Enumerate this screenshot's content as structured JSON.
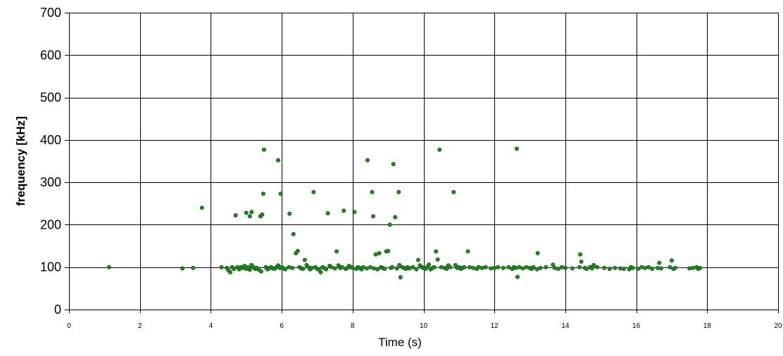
{
  "chart_data": {
    "type": "scatter",
    "title": "",
    "xlabel": "Time (s)",
    "ylabel": "frequency [kHz]",
    "xlim": [
      0,
      20
    ],
    "ylim": [
      0,
      700
    ],
    "xticks": [
      0,
      2,
      4,
      6,
      8,
      10,
      12,
      14,
      16,
      18,
      20
    ],
    "yticks": [
      0,
      100,
      200,
      300,
      400,
      500,
      600,
      700
    ],
    "grid": true,
    "legend": "none",
    "marker_color": "#1e8c1e",
    "marker_edge_color": "#0f5a0f",
    "series": [
      {
        "points": [
          [
            1.13,
            100
          ],
          [
            3.2,
            97
          ],
          [
            3.5,
            98
          ],
          [
            3.75,
            240
          ],
          [
            4.3,
            100
          ],
          [
            4.45,
            98
          ],
          [
            4.5,
            92
          ],
          [
            4.55,
            88
          ],
          [
            4.6,
            100
          ],
          [
            4.65,
            96
          ],
          [
            4.7,
            222
          ],
          [
            4.75,
            100
          ],
          [
            4.8,
            95
          ],
          [
            4.85,
            100
          ],
          [
            4.9,
            98
          ],
          [
            4.95,
            103
          ],
          [
            5.0,
            228
          ],
          [
            5.0,
            96
          ],
          [
            5.05,
            100
          ],
          [
            5.1,
            220
          ],
          [
            5.1,
            94
          ],
          [
            5.15,
            230
          ],
          [
            5.15,
            105
          ],
          [
            5.2,
            100
          ],
          [
            5.25,
            96
          ],
          [
            5.3,
            98
          ],
          [
            5.35,
            94
          ],
          [
            5.4,
            220
          ],
          [
            5.42,
            90
          ],
          [
            5.45,
            224
          ],
          [
            5.48,
            273
          ],
          [
            5.5,
            377
          ],
          [
            5.55,
            100
          ],
          [
            5.6,
            95
          ],
          [
            5.65,
            98
          ],
          [
            5.7,
            100
          ],
          [
            5.75,
            97
          ],
          [
            5.8,
            96
          ],
          [
            5.85,
            100
          ],
          [
            5.9,
            104
          ],
          [
            5.9,
            352
          ],
          [
            5.95,
            98
          ],
          [
            5.97,
            273
          ],
          [
            6.0,
            100
          ],
          [
            6.05,
            97
          ],
          [
            6.1,
            95
          ],
          [
            6.2,
            100
          ],
          [
            6.22,
            226
          ],
          [
            6.3,
            98
          ],
          [
            6.33,
            178
          ],
          [
            6.4,
            133
          ],
          [
            6.45,
            138
          ],
          [
            6.5,
            100
          ],
          [
            6.55,
            97
          ],
          [
            6.6,
            96
          ],
          [
            6.65,
            117
          ],
          [
            6.7,
            105
          ],
          [
            6.75,
            100
          ],
          [
            6.8,
            95
          ],
          [
            6.85,
            98
          ],
          [
            6.9,
            277
          ],
          [
            6.95,
            100
          ],
          [
            7.0,
            96
          ],
          [
            7.05,
            94
          ],
          [
            7.1,
            88
          ],
          [
            7.15,
            100
          ],
          [
            7.2,
            98
          ],
          [
            7.25,
            95
          ],
          [
            7.3,
            227
          ],
          [
            7.35,
            103
          ],
          [
            7.4,
            100
          ],
          [
            7.5,
            97
          ],
          [
            7.55,
            137
          ],
          [
            7.6,
            104
          ],
          [
            7.65,
            98
          ],
          [
            7.7,
            100
          ],
          [
            7.75,
            233
          ],
          [
            7.8,
            96
          ],
          [
            7.85,
            98
          ],
          [
            7.9,
            103
          ],
          [
            7.95,
            100
          ],
          [
            8.0,
            98
          ],
          [
            8.05,
            230
          ],
          [
            8.1,
            96
          ],
          [
            8.15,
            100
          ],
          [
            8.2,
            98
          ],
          [
            8.25,
            95
          ],
          [
            8.3,
            100
          ],
          [
            8.4,
            97
          ],
          [
            8.42,
            352
          ],
          [
            8.5,
            100
          ],
          [
            8.55,
            277
          ],
          [
            8.58,
            220
          ],
          [
            8.6,
            97
          ],
          [
            8.65,
            130
          ],
          [
            8.7,
            95
          ],
          [
            8.75,
            133
          ],
          [
            8.8,
            100
          ],
          [
            8.85,
            98
          ],
          [
            8.9,
            96
          ],
          [
            8.95,
            137
          ],
          [
            9.0,
            138
          ],
          [
            9.05,
            200
          ],
          [
            9.08,
            98
          ],
          [
            9.12,
            100
          ],
          [
            9.15,
            343
          ],
          [
            9.2,
            218
          ],
          [
            9.25,
            97
          ],
          [
            9.3,
            277
          ],
          [
            9.32,
            105
          ],
          [
            9.35,
            76
          ],
          [
            9.4,
            100
          ],
          [
            9.45,
            98
          ],
          [
            9.5,
            96
          ],
          [
            9.55,
            100
          ],
          [
            9.6,
            97
          ],
          [
            9.7,
            100
          ],
          [
            9.8,
            95
          ],
          [
            9.85,
            117
          ],
          [
            9.9,
            104
          ],
          [
            9.95,
            100
          ],
          [
            10.0,
            98
          ],
          [
            10.05,
            96
          ],
          [
            10.1,
            100
          ],
          [
            10.15,
            106
          ],
          [
            10.2,
            95
          ],
          [
            10.25,
            98
          ],
          [
            10.3,
            100
          ],
          [
            10.35,
            137
          ],
          [
            10.4,
            118
          ],
          [
            10.45,
            377
          ],
          [
            10.5,
            100
          ],
          [
            10.6,
            98
          ],
          [
            10.65,
            96
          ],
          [
            10.7,
            104
          ],
          [
            10.75,
            100
          ],
          [
            10.85,
            277
          ],
          [
            10.9,
            105
          ],
          [
            10.95,
            98
          ],
          [
            11.0,
            100
          ],
          [
            11.05,
            96
          ],
          [
            11.1,
            98
          ],
          [
            11.15,
            100
          ],
          [
            11.25,
            137
          ],
          [
            11.3,
            100
          ],
          [
            11.4,
            98
          ],
          [
            11.5,
            96
          ],
          [
            11.55,
            100
          ],
          [
            11.65,
            98
          ],
          [
            11.75,
            100
          ],
          [
            11.9,
            97
          ],
          [
            12.0,
            98
          ],
          [
            12.1,
            100
          ],
          [
            12.25,
            98
          ],
          [
            12.4,
            100
          ],
          [
            12.5,
            96
          ],
          [
            12.55,
            100
          ],
          [
            12.6,
            98
          ],
          [
            12.63,
            379
          ],
          [
            12.65,
            77
          ],
          [
            12.7,
            100
          ],
          [
            12.8,
            97
          ],
          [
            12.9,
            100
          ],
          [
            13.0,
            98
          ],
          [
            13.05,
            96
          ],
          [
            13.1,
            100
          ],
          [
            13.2,
            95
          ],
          [
            13.22,
            133
          ],
          [
            13.3,
            98
          ],
          [
            13.45,
            100
          ],
          [
            13.65,
            106
          ],
          [
            13.7,
            98
          ],
          [
            13.8,
            96
          ],
          [
            13.9,
            100
          ],
          [
            14.0,
            98
          ],
          [
            14.2,
            97
          ],
          [
            14.4,
            100
          ],
          [
            14.42,
            130
          ],
          [
            14.45,
            113
          ],
          [
            14.55,
            98
          ],
          [
            14.6,
            96
          ],
          [
            14.7,
            100
          ],
          [
            14.75,
            97
          ],
          [
            14.8,
            105
          ],
          [
            14.9,
            100
          ],
          [
            15.1,
            98
          ],
          [
            15.25,
            96
          ],
          [
            15.4,
            98
          ],
          [
            15.55,
            97
          ],
          [
            15.65,
            96
          ],
          [
            15.8,
            95
          ],
          [
            15.85,
            100
          ],
          [
            15.9,
            98
          ],
          [
            16.05,
            96
          ],
          [
            16.15,
            100
          ],
          [
            16.25,
            98
          ],
          [
            16.35,
            100
          ],
          [
            16.45,
            96
          ],
          [
            16.6,
            98
          ],
          [
            16.65,
            110
          ],
          [
            16.7,
            97
          ],
          [
            16.95,
            100
          ],
          [
            17.0,
            116
          ],
          [
            17.05,
            96
          ],
          [
            17.1,
            98
          ],
          [
            17.5,
            97
          ],
          [
            17.6,
            98
          ],
          [
            17.7,
            100
          ],
          [
            17.75,
            96
          ],
          [
            17.8,
            98
          ]
        ]
      }
    ]
  }
}
